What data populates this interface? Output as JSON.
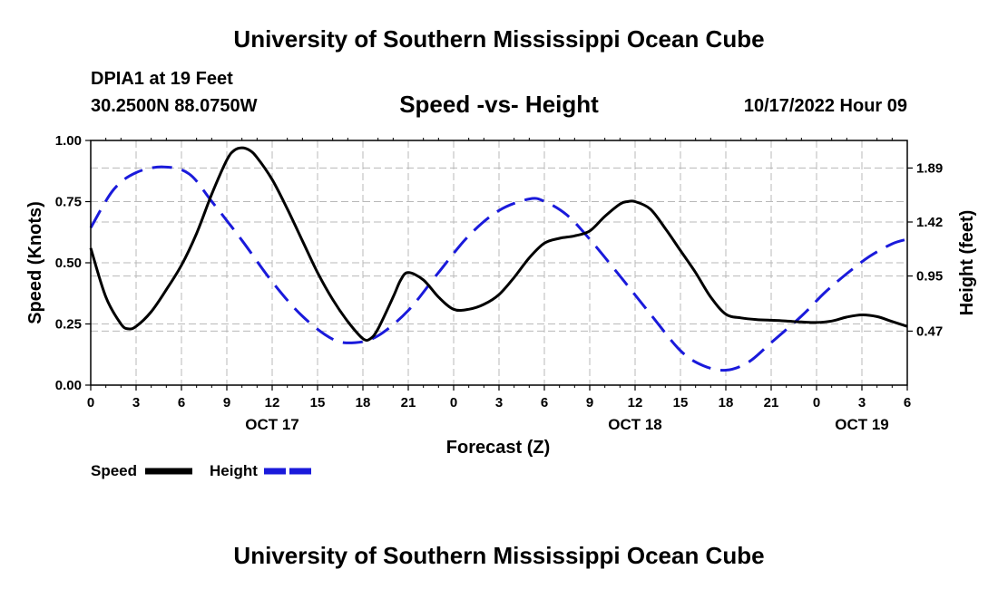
{
  "header": {
    "title": "University of Southern Mississippi Ocean Cube",
    "station": "DPIA1 at 19 Feet",
    "coords": "30.2500N  88.0750W",
    "subtitle": "Speed -vs- Height",
    "datetime": "10/17/2022 Hour 09"
  },
  "footer": {
    "title": "University of Southern Mississippi Ocean Cube"
  },
  "legend": {
    "speed_label": "Speed",
    "height_label": "Height"
  },
  "colors": {
    "speed": "#000000",
    "height": "#1a1adb",
    "grid": "#b8b8b8"
  },
  "chart_data": {
    "type": "line",
    "title": "Speed -vs- Height",
    "xlabel": "Forecast (Z)",
    "ylabel": "Speed (Knots)",
    "y2label": "Height (feet)",
    "xlim": [
      0,
      54
    ],
    "ylim": [
      0,
      1.0
    ],
    "y2lim": [
      0,
      2.13
    ],
    "x_ticks": [
      0,
      3,
      6,
      9,
      12,
      15,
      18,
      21,
      24,
      27,
      30,
      33,
      36,
      39,
      42,
      45,
      48,
      51,
      54
    ],
    "x_tick_labels": [
      "0",
      "3",
      "6",
      "9",
      "12",
      "15",
      "18",
      "21",
      "0",
      "3",
      "6",
      "9",
      "12",
      "15",
      "18",
      "21",
      "0",
      "3",
      "6"
    ],
    "date_labels": [
      {
        "x": 12,
        "label": "OCT 17"
      },
      {
        "x": 36,
        "label": "OCT 18"
      },
      {
        "x": 51,
        "label": "OCT 19"
      }
    ],
    "y_ticks": [
      0.0,
      0.25,
      0.5,
      0.75,
      1.0
    ],
    "y_tick_labels": [
      "0.00",
      "0.25",
      "0.50",
      "0.75",
      "1.00"
    ],
    "y2_ticks": [
      0.47,
      0.95,
      1.42,
      1.89
    ],
    "y2_tick_labels": [
      "0.47",
      "0.95",
      "1.42",
      "1.89"
    ],
    "grid": true,
    "series": [
      {
        "name": "Speed",
        "axis": "left",
        "style": "solid",
        "x": [
          0,
          1,
          2,
          2.5,
          3,
          4,
          5,
          6,
          7,
          8,
          9,
          9.5,
          10,
          10.5,
          11,
          12,
          13,
          14,
          15,
          16,
          17,
          18,
          18.5,
          19,
          20,
          20.5,
          21,
          22,
          23,
          24,
          25,
          26,
          27,
          28,
          29,
          30,
          31,
          32,
          33,
          34,
          35,
          35.5,
          36,
          37,
          38,
          39,
          40,
          41,
          42,
          43,
          44,
          45,
          46,
          47,
          48,
          49,
          50,
          51,
          52,
          53,
          54
        ],
        "values": [
          0.56,
          0.36,
          0.25,
          0.23,
          0.24,
          0.3,
          0.39,
          0.49,
          0.62,
          0.78,
          0.92,
          0.96,
          0.97,
          0.96,
          0.93,
          0.84,
          0.72,
          0.59,
          0.46,
          0.35,
          0.26,
          0.19,
          0.19,
          0.23,
          0.36,
          0.43,
          0.46,
          0.43,
          0.36,
          0.31,
          0.31,
          0.33,
          0.37,
          0.44,
          0.52,
          0.58,
          0.6,
          0.61,
          0.63,
          0.69,
          0.74,
          0.75,
          0.75,
          0.72,
          0.64,
          0.55,
          0.46,
          0.36,
          0.29,
          0.275,
          0.268,
          0.265,
          0.262,
          0.258,
          0.256,
          0.262,
          0.278,
          0.287,
          0.28,
          0.26,
          0.24
        ]
      },
      {
        "name": "Height",
        "axis": "right",
        "style": "dashed",
        "x": [
          0,
          1.5,
          3,
          4.8,
          6.5,
          8,
          10,
          12,
          14,
          16,
          17.5,
          19,
          21,
          23,
          25,
          27,
          29,
          30,
          31.5,
          33,
          35,
          37,
          39,
          40.5,
          42,
          43.5,
          45,
          47,
          48.5,
          50,
          51.5,
          53,
          54
        ],
        "values": [
          1.37,
          1.7,
          1.85,
          1.9,
          1.84,
          1.6,
          1.26,
          0.9,
          0.6,
          0.4,
          0.37,
          0.43,
          0.65,
          0.98,
          1.3,
          1.52,
          1.62,
          1.6,
          1.48,
          1.27,
          0.95,
          0.62,
          0.3,
          0.17,
          0.13,
          0.2,
          0.37,
          0.6,
          0.8,
          0.97,
          1.12,
          1.23,
          1.27
        ]
      }
    ]
  }
}
